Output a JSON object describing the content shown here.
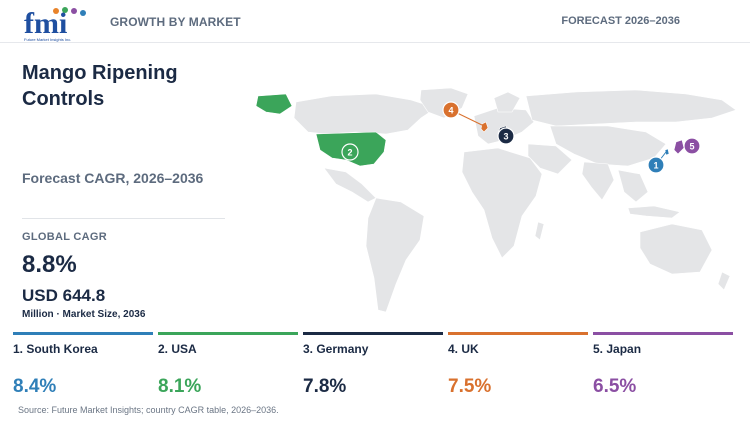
{
  "header": {
    "logo_text": "fmi",
    "logo_subtext": "Future Market Insights Inc.",
    "left_label": "GROWTH BY MARKET",
    "right_label": "FORECAST 2026–2036"
  },
  "summary": {
    "title": "Mango Ripening Controls",
    "subtitle": "Forecast CAGR, 2026–2036",
    "global_cagr_label": "GLOBAL CAGR",
    "global_cagr_value": "8.8%",
    "market_size_value": "USD 644.8",
    "market_size_unit": "Million · Market Size, 2036"
  },
  "colors": {
    "rank_1": "#2f7fb8",
    "rank_2": "#3ba55a",
    "rank_3": "#1b2a44",
    "rank_4": "#d9712e",
    "rank_5": "#8b4fa3",
    "land": "#e4e5e7"
  },
  "map_markers": [
    "1",
    "2",
    "3",
    "4",
    "5"
  ],
  "countries": [
    {
      "name": "1. South Korea",
      "cagr": "8.4%"
    },
    {
      "name": "2. USA",
      "cagr": "8.1%"
    },
    {
      "name": "3. Germany",
      "cagr": "7.8%"
    },
    {
      "name": "4. UK",
      "cagr": "7.5%"
    },
    {
      "name": "5. Japan",
      "cagr": "6.5%"
    }
  ],
  "source": "Source: Future Market Insights; country CAGR table, 2026–2036."
}
